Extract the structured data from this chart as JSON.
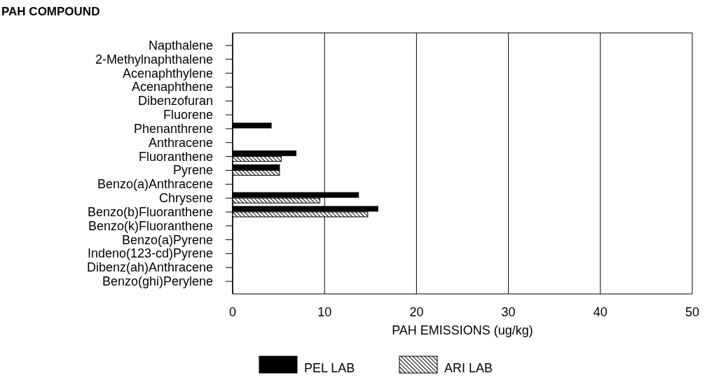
{
  "chart_data": {
    "type": "bar",
    "orientation": "horizontal",
    "ylabel": "PAH COMPOUND",
    "xlabel": "PAH EMISSIONS (ug/kg)",
    "categories": [
      "Napthalene",
      "2-Methylnaphthalene",
      "Acenaphthylene",
      "Acenaphthene",
      "Dibenzofuran",
      "Fluorene",
      "Phenanthrene",
      "Anthracene",
      "Fluoranthene",
      "Pyrene",
      "Benzo(a)Anthracene",
      "Chrysene",
      "Benzo(b)Fluoranthene",
      "Benzo(k)Fluoranthene",
      "Benzo(a)Pyrene",
      "Indeno(123-cd)Pyrene",
      "Dibenz(ah)Anthracene",
      "Benzo(ghi)Perylene"
    ],
    "series": [
      {
        "name": "PEL LAB",
        "color": "#000000",
        "values": [
          null,
          null,
          null,
          null,
          null,
          null,
          4.2,
          null,
          6.9,
          5.1,
          null,
          13.7,
          15.8,
          null,
          null,
          null,
          null,
          null
        ]
      },
      {
        "name": "ARI LAB",
        "color": "#000000",
        "values": [
          null,
          null,
          null,
          null,
          null,
          null,
          null,
          null,
          5.3,
          5.1,
          null,
          9.5,
          14.7,
          null,
          null,
          null,
          null,
          null
        ]
      }
    ],
    "xlim": [
      0,
      50
    ],
    "xticks": [
      0,
      10,
      20,
      30,
      40,
      50
    ],
    "grid": "x",
    "legend": "bottom"
  }
}
